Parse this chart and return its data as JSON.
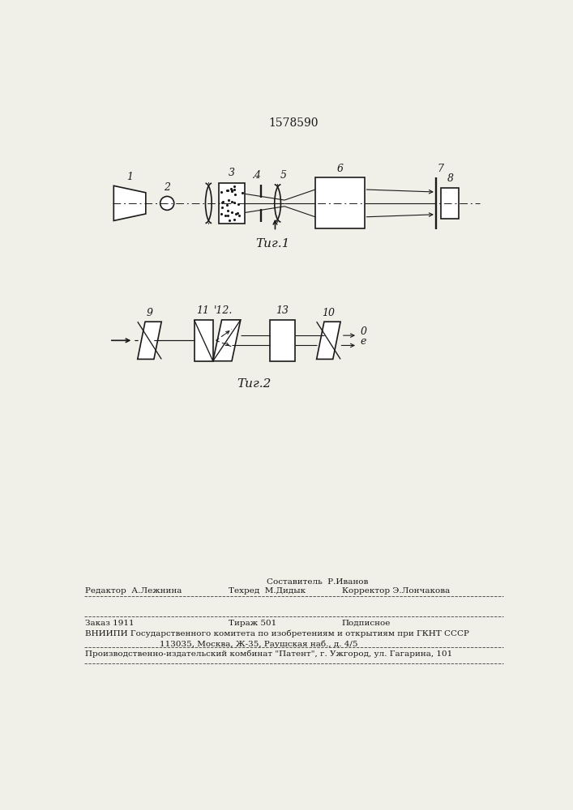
{
  "title": "1578590",
  "fig1_label": "Τиг.1",
  "fig2_label": "Τиг.2",
  "background_color": "#f0efe8",
  "line_color": "#1a1a1a",
  "footer": {
    "sostavitel": "Составитель  Р.Иванов",
    "redaktor": "Редактор  А.Лежнина",
    "tehred": "Техред  М.Дидык",
    "korrektor": "Корректор Э.Лончакова",
    "zakaz": "Заказ 1911",
    "tirazh": "Тираж 501",
    "podpisnoe": "Подписное",
    "vniipи": "ВНИИПИ Государственного комитета по изобретениям и открытиям при ГКНТ СССР",
    "address": "113035, Москва, Ж-35, Раушская наб., д. 4/5",
    "patent": "Производственно-издательский комбинат \"Патент\", г. Ужгород, ул. Гагарина, 101"
  }
}
